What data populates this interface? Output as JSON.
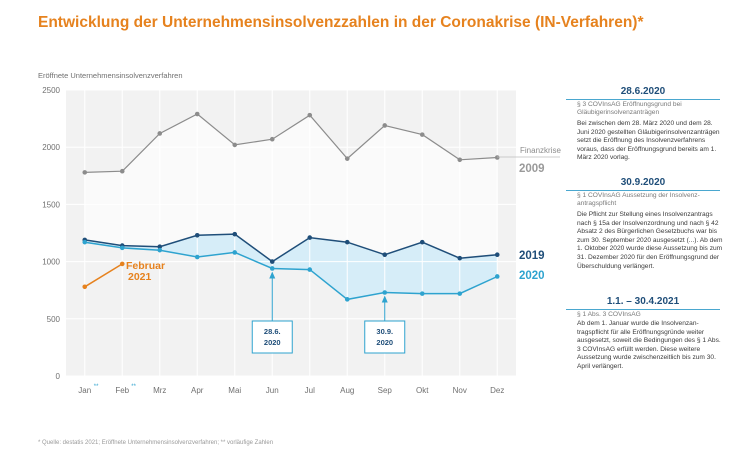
{
  "title": "Entwicklung der Unternehmensinsolvenzzahlen in der Coronakrise (IN-Verfahren)*",
  "chart_data": {
    "type": "line",
    "ylabel": "Eröffnete Unternehmensinsolvenzverfahren",
    "ylim": [
      0,
      2500
    ],
    "yticks": [
      0,
      500,
      1000,
      1500,
      2000,
      2500
    ],
    "grid": true,
    "categories": [
      "Jan",
      "Feb",
      "Mrz",
      "Apr",
      "Mai",
      "Jun",
      "Jul",
      "Aug",
      "Sep",
      "Okt",
      "Nov",
      "Dez"
    ],
    "category_markers": [
      "**",
      "**",
      "",
      "",
      "",
      "",
      "",
      "",
      "",
      "",
      "",
      ""
    ],
    "series": [
      {
        "name": "2009",
        "color": "#8c8c8c",
        "values": [
          1780,
          1790,
          2120,
          2290,
          2020,
          2070,
          2280,
          1900,
          2190,
          2110,
          1890,
          1910
        ]
      },
      {
        "name": "2019",
        "color": "#1f4e79",
        "values": [
          1190,
          1140,
          1130,
          1230,
          1240,
          1000,
          1210,
          1170,
          1060,
          1170,
          1030,
          1060
        ]
      },
      {
        "name": "2020",
        "color": "#2ea3cf",
        "values": [
          1170,
          1120,
          1100,
          1040,
          1080,
          940,
          930,
          670,
          730,
          720,
          720,
          870
        ]
      },
      {
        "name": "Februar 2021",
        "color": "#e6821e",
        "values": [
          780,
          980,
          null,
          null,
          null,
          null,
          null,
          null,
          null,
          null,
          null,
          null
        ]
      }
    ],
    "labels": {
      "finanzkrise": "Finanzkrise",
      "y2009": "2009",
      "y2019": "2019",
      "y2020": "2020",
      "februar": "Februar",
      "y2021": "2021"
    },
    "annotations": [
      {
        "category": "Jun",
        "line1": "28.6.",
        "line2": "2020"
      },
      {
        "category": "Sep",
        "line1": "30.9.",
        "line2": "2020"
      }
    ]
  },
  "sidebar": [
    {
      "date": "28.6.2020",
      "subtitle": "§ 3 COVInsAG Eröffnungsgrund bei Gläubigerinsolvenzanträgen",
      "body": "Bei zwischen dem 28. März 2020 und dem 28. Juni 2020 gestellten Gläubiger­insolvenz­anträgen setzt die Eröffnung des Insolvenz­verfahrens voraus, dass der Eröffnungsgrund bereits am 1. März 2020 vorlag."
    },
    {
      "date": "30.9.2020",
      "subtitle": "§ 1 COVInsAG Aussetzung der Insolvenz­antragspflicht",
      "body": "Die Pflicht zur Stellung eines Insolvenzan­trags nach § 15a der Insolvenzordnung und nach § 42 Absatz 2 des Bürgerlichen Gesetzbuchs war bis zum 30. September 2020 ausgesetzt (...). Ab dem 1. Oktober 2020 wurde diese Aussetzung bis zum 31. Dezember 2020 für den Eröffnungs­grund der Überschuldung verlängert."
    },
    {
      "date": "1.1. – 30.4.2021",
      "subtitle": "§ 1 Abs. 3 COVInsAG",
      "body": "Ab dem 1. Januar wurde die Insolvenzan­tragspflicht für alle Eröffnungsgründe weiter ausgesetzt, soweit die Bedingungen des § 1 Abs. 3 COVInsAG erfüllt werden. Diese weitere Aussetzung wurde zwischenzeitlich bis zum 30. April verlängert."
    }
  ],
  "footnote": "* Quelle: destatis 2021; Eröffnete Unternehmensinsolvenzverfahren; ** vorläufige Zahlen"
}
